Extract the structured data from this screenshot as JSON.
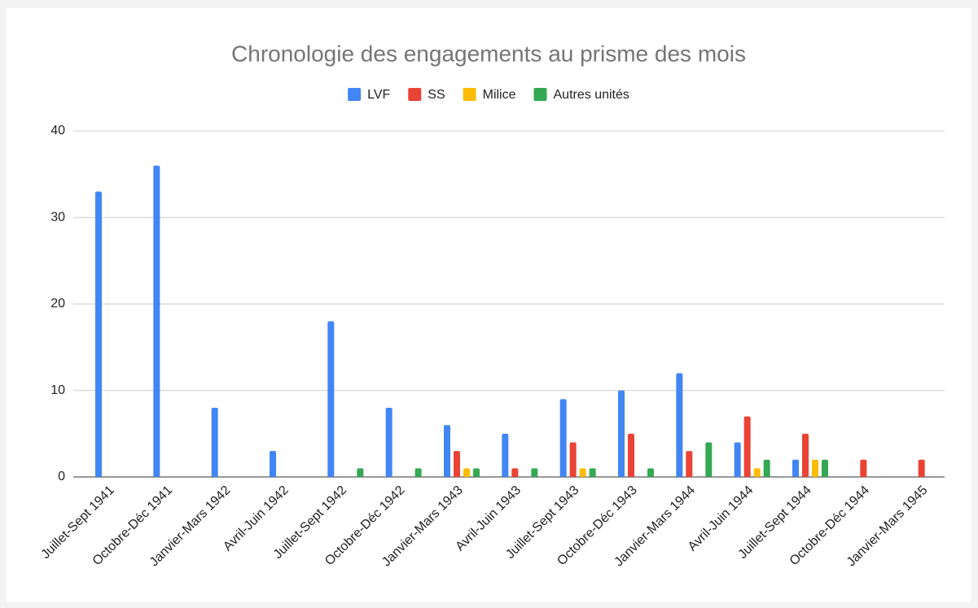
{
  "chart_data": {
    "type": "bar",
    "title": "Chronologie des engagements au prisme des mois",
    "categories": [
      "Juillet-Sept 1941",
      "Octobre-Déc 1941",
      "Janvier-Mars 1942",
      "Avril-Juin 1942",
      "Juillet-Sept 1942",
      "Octobre-Déc 1942",
      "Janvier-Mars 1943",
      "Avril-Juin 1943",
      "Juillet-Sept 1943",
      "Octobre-Déc 1943",
      "Janvier-Mars 1944",
      "Avril-Juin 1944",
      "Juillet-Sept 1944",
      "Octobre-Déc 1944",
      "Janvier-Mars 1945"
    ],
    "series": [
      {
        "name": "LVF",
        "color": "#4285f4",
        "values": [
          33,
          36,
          8,
          3,
          18,
          8,
          6,
          5,
          9,
          10,
          12,
          4,
          2,
          0,
          0
        ]
      },
      {
        "name": "SS",
        "color": "#ea4335",
        "values": [
          0,
          0,
          0,
          0,
          0,
          0,
          3,
          1,
          4,
          5,
          3,
          7,
          5,
          2,
          2
        ]
      },
      {
        "name": "Milice",
        "color": "#fbbc04",
        "values": [
          0,
          0,
          0,
          0,
          0,
          0,
          1,
          0,
          1,
          0,
          0,
          1,
          2,
          0,
          0
        ]
      },
      {
        "name": "Autres unités",
        "color": "#34a853",
        "values": [
          0,
          0,
          0,
          0,
          1,
          1,
          1,
          1,
          1,
          1,
          4,
          2,
          2,
          0,
          0
        ]
      }
    ],
    "ylim": [
      0,
      40
    ],
    "yticks": [
      0,
      10,
      20,
      30,
      40
    ],
    "grid": true,
    "legend": "top"
  }
}
